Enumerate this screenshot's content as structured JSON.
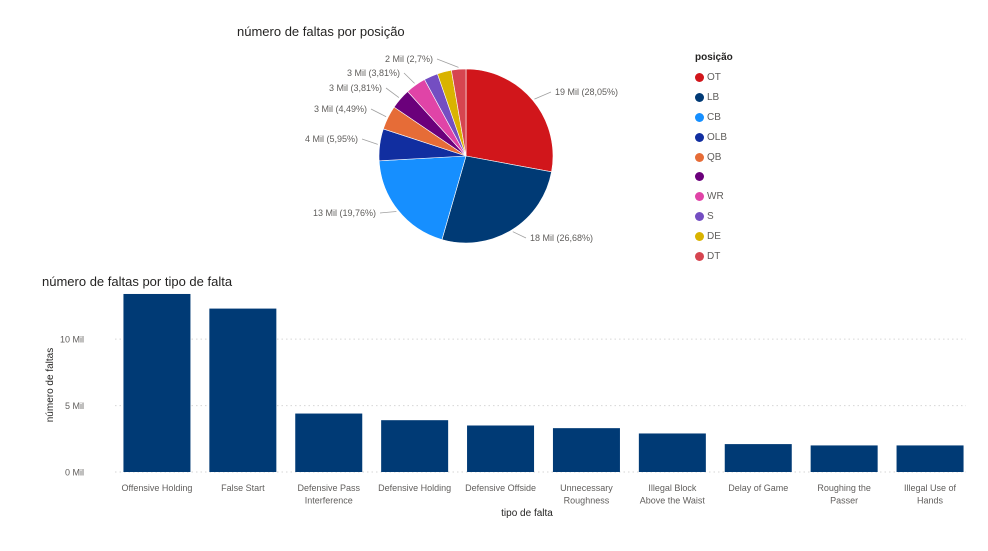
{
  "chart_data": [
    {
      "type": "pie",
      "title": "número de faltas por posição",
      "legend_title": "posição",
      "legend_position": "right",
      "slices": [
        {
          "name": "OT",
          "value": 19,
          "label": "19 Mil (28,05%)",
          "color": "#d1161b"
        },
        {
          "name": "LB",
          "value": 18,
          "label": "18 Mil (26,68%)",
          "color": "#003a75"
        },
        {
          "name": "CB",
          "value": 13,
          "label": "13 Mil (19,76%)",
          "color": "#168fff"
        },
        {
          "name": "OLB",
          "value": 4,
          "label": "4 Mil (5,95%)",
          "color": "#112ea0"
        },
        {
          "name": "QB",
          "value": 3,
          "label": "3 Mil (4,49%)",
          "color": "#e66c37"
        },
        {
          "name": "",
          "value": 3,
          "label": "3 Mil (3,81%)",
          "color": "#6b007b"
        },
        {
          "name": "WR",
          "value": 3,
          "label": "3 Mil (3,81%)",
          "color": "#e044a7"
        },
        {
          "name": "S",
          "value": 2,
          "label": "",
          "color": "#744ec2"
        },
        {
          "name": "DE",
          "value": 2,
          "label": "",
          "color": "#d9b300"
        },
        {
          "name": "DT",
          "value": 2,
          "label": "2 Mil (2,7%)",
          "color": "#d64550"
        }
      ],
      "percentages": [
        28.05,
        26.68,
        19.76,
        5.95,
        4.49,
        3.81,
        3.81,
        2.6,
        2.65,
        2.7
      ]
    },
    {
      "type": "bar",
      "title": "número de faltas por tipo de falta",
      "xlabel": "tipo de falta",
      "ylabel": "número de faltas",
      "ylim": [
        0,
        14
      ],
      "yticks": [
        {
          "value": 0,
          "label": "0 Mil"
        },
        {
          "value": 5,
          "label": "5 Mil"
        },
        {
          "value": 10,
          "label": "10 Mil"
        }
      ],
      "grid": true,
      "bar_color": "#003a75",
      "categories": [
        [
          "Offensive Holding"
        ],
        [
          "False Start"
        ],
        [
          "Defensive Pass",
          "Interference"
        ],
        [
          "Defensive Holding"
        ],
        [
          "Defensive Offside"
        ],
        [
          "Unnecessary",
          "Roughness"
        ],
        [
          "Illegal Block",
          "Above the Waist"
        ],
        [
          "Delay of Game"
        ],
        [
          "Roughing the",
          "Passer"
        ],
        [
          "Illegal Use of",
          "Hands"
        ]
      ],
      "values": [
        13.4,
        12.3,
        4.4,
        3.9,
        3.5,
        3.3,
        2.9,
        2.1,
        2.0,
        2.0
      ]
    }
  ]
}
